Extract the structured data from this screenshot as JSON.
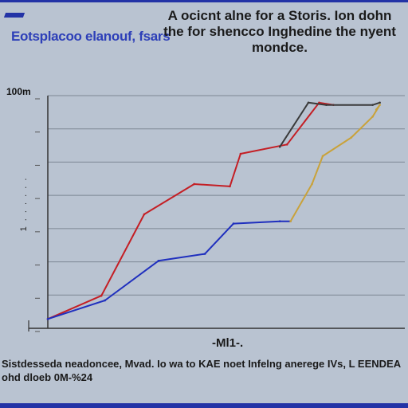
{
  "header": {
    "title": "Eotsplacoo elanouf, fsars",
    "subtitle": "A ocicnt alne for a Storis. Ion dohn the for shencco Inghedine the nyent mondce."
  },
  "axes": {
    "y_top_label": "100m",
    "y_axis_label": "1 . . . . . .",
    "x_axis_label": "-Ml1-."
  },
  "caption": "Sistdesseda neadoncee, Mvad. Io wa to KAE noet Infelng anerege IVs, L EENDEA ohd dloeb 0M-%24",
  "chart_data": {
    "type": "line",
    "title": "Eotsplacoo elanouf, fsars",
    "xlabel": "-Ml1-.",
    "ylabel": "",
    "xlim": [
      0,
      10
    ],
    "ylim": [
      0,
      100
    ],
    "grid": true,
    "series": [
      {
        "name": "",
        "color": "#c41e24",
        "x": [
          0,
          1.5,
          2.7,
          4.1,
          5.1,
          5.4,
          6.7,
          7.6,
          8.0
        ],
        "y": [
          4,
          14,
          49,
          62,
          61,
          75,
          79,
          97,
          96
        ]
      },
      {
        "name": "",
        "color": "#1f2fbe",
        "x": [
          0,
          1.6,
          3.1,
          4.4,
          5.2,
          6.5,
          6.8
        ],
        "y": [
          4,
          12,
          29,
          32,
          45,
          46,
          46
        ]
      },
      {
        "name": "",
        "color": "#c9a23a",
        "x": [
          6.8,
          7.4,
          7.7,
          8.5,
          9.1,
          9.3,
          9.2
        ],
        "y": [
          46,
          62,
          74,
          82,
          91,
          96,
          94
        ]
      },
      {
        "name": "",
        "color": "#3a3a3a",
        "x": [
          6.5,
          7.3,
          7.8,
          9.1,
          9.3
        ],
        "y": [
          78,
          97,
          96,
          96,
          97
        ]
      }
    ]
  }
}
